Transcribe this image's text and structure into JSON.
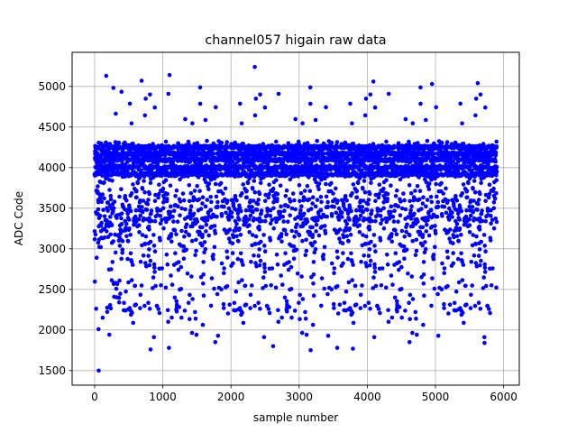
{
  "chart_data": {
    "type": "scatter",
    "title": "channel057 higain raw data",
    "xlabel": "sample number",
    "ylabel": "ADC Code",
    "xlim": [
      -330,
      6230
    ],
    "ylim": [
      1320,
      5420
    ],
    "xticks": [
      0,
      1000,
      2000,
      3000,
      4000,
      5000,
      6000
    ],
    "yticks": [
      1500,
      2000,
      2500,
      3000,
      3500,
      4000,
      4500,
      5000
    ],
    "grid": true,
    "marker_color": "#0000ff",
    "series": [
      {
        "n_points": 5900,
        "x_range": [
          0,
          5900
        ],
        "bands": [
          4250,
          4170,
          4100,
          4000,
          3920
        ],
        "outliers": [
          {
            "x": 60,
            "y": 1500
          },
          {
            "x": 2350,
            "y": 5240
          },
          {
            "x": 1100,
            "y": 5140
          },
          {
            "x": 170,
            "y": 5130
          },
          {
            "x": 690,
            "y": 5070
          },
          {
            "x": 4090,
            "y": 5060
          },
          {
            "x": 5620,
            "y": 5040
          },
          {
            "x": 4950,
            "y": 5030
          },
          {
            "x": 3170,
            "y": 1750
          },
          {
            "x": 820,
            "y": 1760
          },
          {
            "x": 1090,
            "y": 1780
          },
          {
            "x": 3560,
            "y": 1780
          },
          {
            "x": 3790,
            "y": 1770
          },
          {
            "x": 2620,
            "y": 1800
          },
          {
            "x": 5720,
            "y": 1840
          },
          {
            "x": 1770,
            "y": 1850
          },
          {
            "x": 4620,
            "y": 1850
          }
        ]
      }
    ]
  }
}
